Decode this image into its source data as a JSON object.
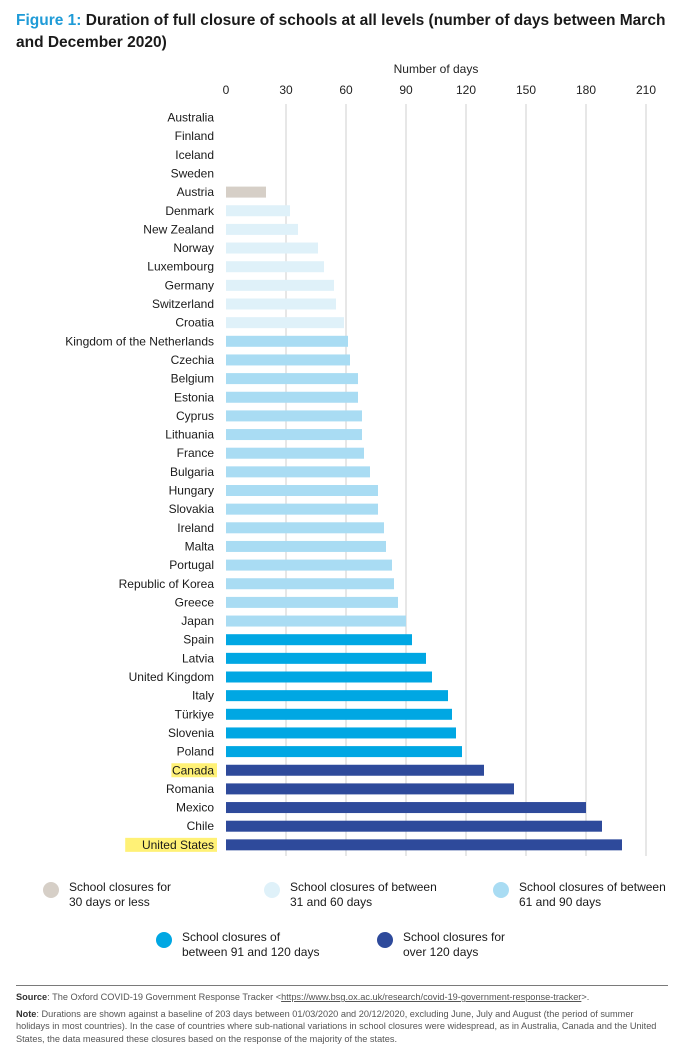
{
  "title": {
    "figure_label": "Figure 1:",
    "text": "Duration of full closure of schools at all levels (number of days between March and December 2020)"
  },
  "chart_data": {
    "type": "bar",
    "orientation": "horizontal",
    "xlabel": "Number of days",
    "xlim": [
      0,
      210
    ],
    "xticks": [
      0,
      30,
      60,
      90,
      120,
      150,
      180,
      210
    ],
    "grid": true,
    "legend_placement": "bottom",
    "highlighted_categories": [
      "Canada",
      "United States"
    ],
    "colors": {
      "le30": "#d6cfc7",
      "d31_60": "#dff1f9",
      "d61_90": "#a9dcf3",
      "d91_120": "#00a7e3",
      "gt120": "#2e4a9b"
    },
    "categories": [
      "Australia",
      "Finland",
      "Iceland",
      "Sweden",
      "Austria",
      "Denmark",
      "New Zealand",
      "Norway",
      "Luxembourg",
      "Germany",
      "Switzerland",
      "Croatia",
      "Kingdom of the Netherlands",
      "Czechia",
      "Belgium",
      "Estonia",
      "Cyprus",
      "Lithuania",
      "France",
      "Bulgaria",
      "Hungary",
      "Slovakia",
      "Ireland",
      "Malta",
      "Portugal",
      "Republic of Korea",
      "Greece",
      "Japan",
      "Spain",
      "Latvia",
      "United Kingdom",
      "Italy",
      "Türkiye",
      "Slovenia",
      "Poland",
      "Canada",
      "Romania",
      "Mexico",
      "Chile",
      "United States"
    ],
    "values": [
      0,
      0,
      0,
      0,
      20,
      32,
      36,
      46,
      49,
      54,
      55,
      59,
      61,
      62,
      66,
      66,
      68,
      68,
      69,
      72,
      76,
      76,
      79,
      80,
      83,
      84,
      86,
      90,
      93,
      100,
      103,
      111,
      113,
      115,
      118,
      129,
      144,
      180,
      188,
      198
    ],
    "groups": [
      "le30",
      "le30",
      "le30",
      "le30",
      "le30",
      "d31_60",
      "d31_60",
      "d31_60",
      "d31_60",
      "d31_60",
      "d31_60",
      "d31_60",
      "d61_90",
      "d61_90",
      "d61_90",
      "d61_90",
      "d61_90",
      "d61_90",
      "d61_90",
      "d61_90",
      "d61_90",
      "d61_90",
      "d61_90",
      "d61_90",
      "d61_90",
      "d61_90",
      "d61_90",
      "d61_90",
      "d91_120",
      "d91_120",
      "d91_120",
      "d91_120",
      "d91_120",
      "d91_120",
      "d91_120",
      "gt120",
      "gt120",
      "gt120",
      "gt120",
      "gt120"
    ]
  },
  "legend": {
    "items": [
      {
        "group": "le30",
        "color": "#d6cfc7",
        "label": "School closures for\n30 days or less"
      },
      {
        "group": "d31_60",
        "color": "#dff1f9",
        "label": "School closures of between\n31 and 60 days"
      },
      {
        "group": "d61_90",
        "color": "#a9dcf3",
        "label": "School closures of between\n61 and 90 days"
      },
      {
        "group": "d91_120",
        "color": "#00a7e3",
        "label": "School closures of\nbetween 91 and 120 days"
      },
      {
        "group": "gt120",
        "color": "#2e4a9b",
        "label": "School closures for\nover 120 days"
      }
    ]
  },
  "footer": {
    "source_label": "Source",
    "source_text": ": The Oxford COVID-19 Government Response Tracker <",
    "source_url": "https://www.bsg.ox.ac.uk/research/covid-19-government-response-tracker",
    "source_end": ">.",
    "note_label": "Note",
    "note_text": ": Durations are shown against a baseline of 203 days between 01/03/2020 and 20/12/2020, excluding June, July and August (the period of summer holidays in most countries). In the case of countries where sub-national variations in school closures were widespread, as in Australia, Canada and the United States, the data measured these closures based on the response of the majority of the states."
  }
}
